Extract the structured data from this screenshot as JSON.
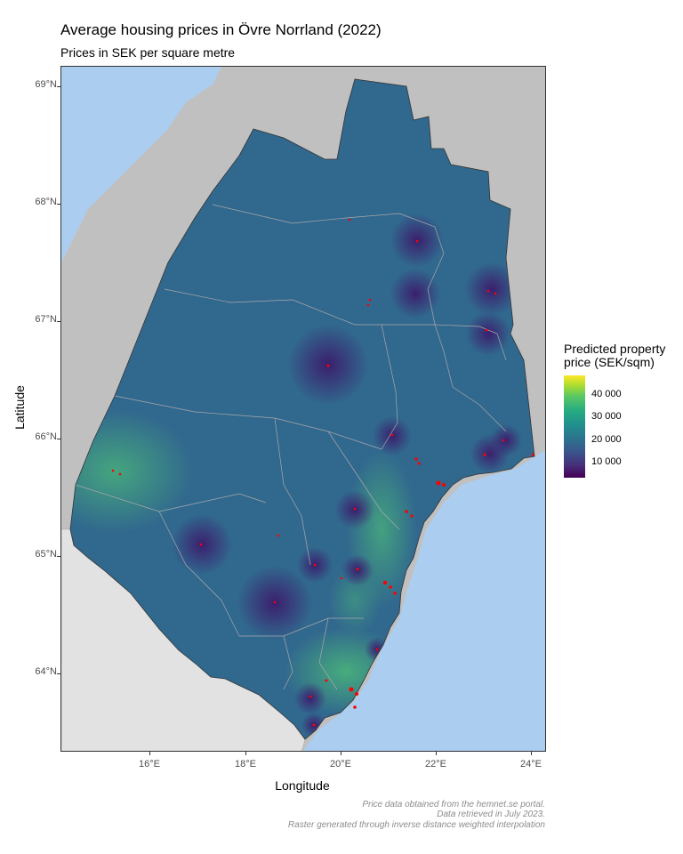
{
  "title": "Average housing prices in Övre Norrland (2022)",
  "subtitle": "Prices in SEK per square metre",
  "axes": {
    "x_label": "Longitude",
    "y_label": "Latitude",
    "x_ticks": [
      "16°E",
      "18°E",
      "20°E",
      "22°E",
      "24°E"
    ],
    "y_ticks": [
      "69°N",
      "68°N",
      "67°N",
      "66°N",
      "65°N",
      "64°N"
    ]
  },
  "legend": {
    "title_line1": "Predicted property",
    "title_line2": "price (SEK/sqm)",
    "labels": [
      "40 000",
      "30 000",
      "20 000",
      "10 000"
    ],
    "colormap": [
      "#440154",
      "#3b528b",
      "#21908d",
      "#5cc863",
      "#fde725"
    ]
  },
  "caption": {
    "line1": "Price data obtained from the hemnet.se portal.",
    "line2": "Data retrieved in July 2023.",
    "line3": "Raster generated through inverse distance weighted interpolation"
  },
  "colors": {
    "sea": "#abcdf0",
    "land_outside": "#c0c0c0",
    "land_norway_south": "#e2e2e2",
    "region_base": "#31688e",
    "hotspot_low": "#3b2f7a",
    "hotspot_high": "#3fa77a",
    "points": "#ff0000"
  }
}
